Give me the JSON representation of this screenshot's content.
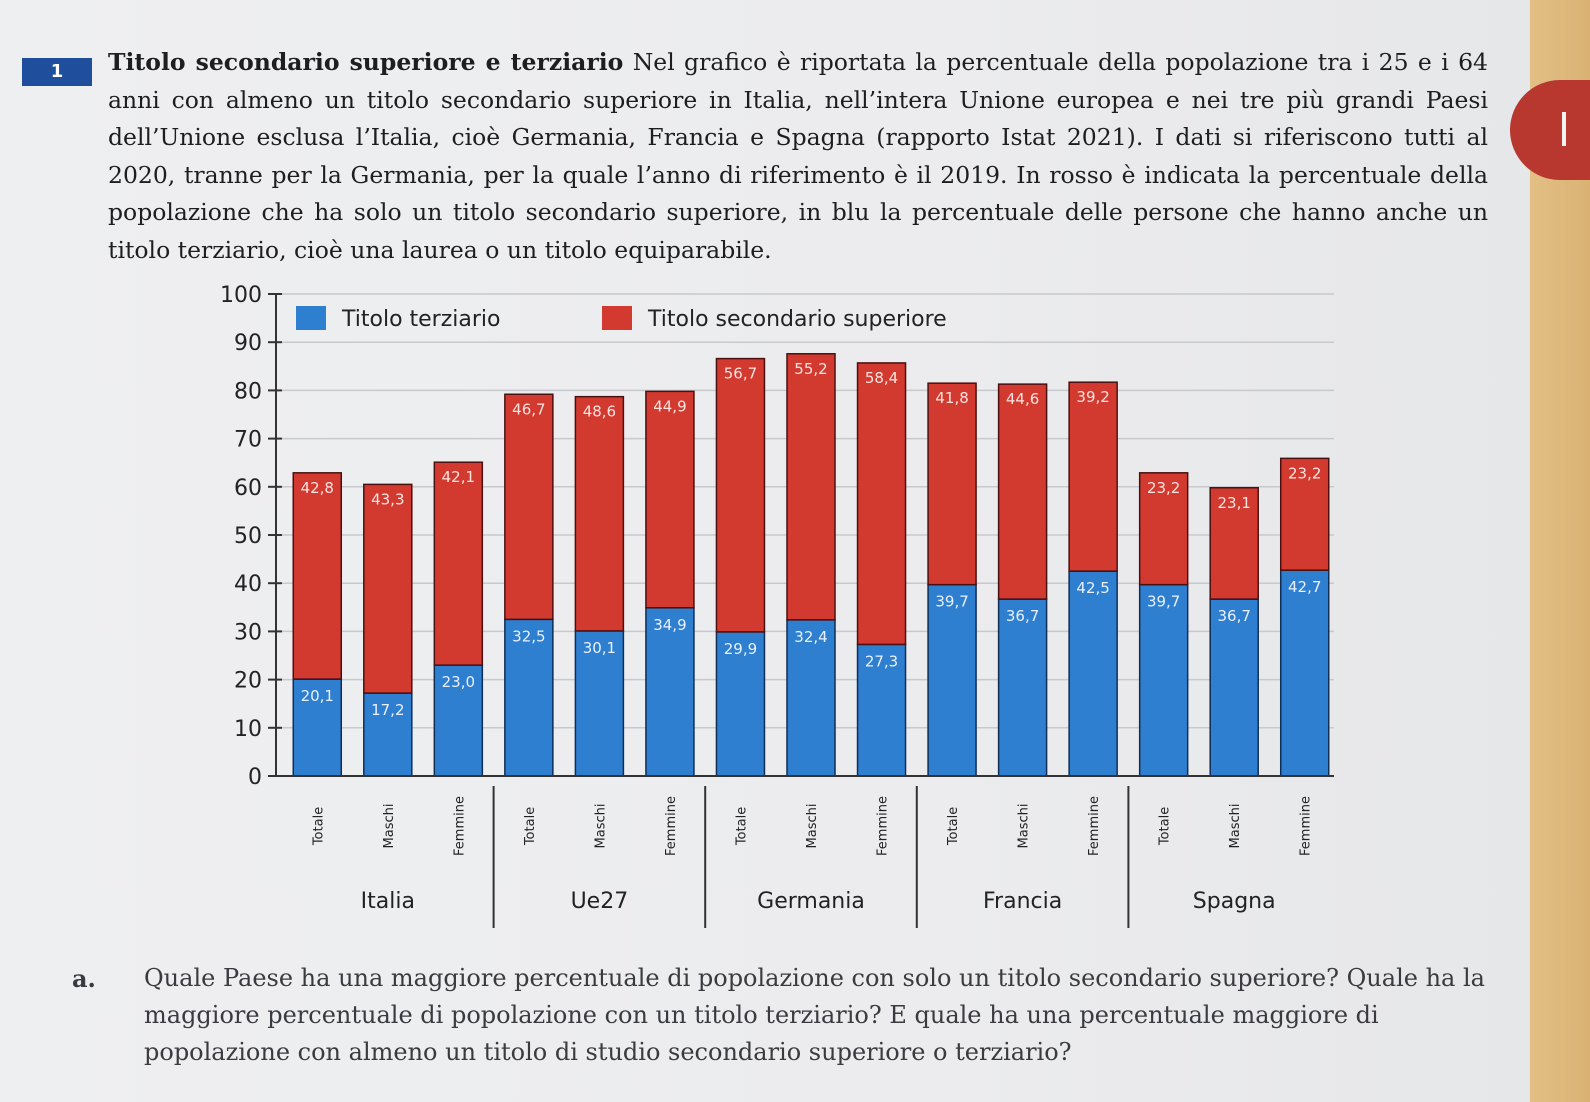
{
  "exercise": {
    "number": "1",
    "lead": "Titolo secondario superiore e terziario",
    "text": "Nel grafico è riportata la percentuale della popolazione tra i 25 e i 64 anni con almeno un titolo secondario superiore in Italia, nell’intera Unione europea e nei tre più grandi Paesi dell’Unione esclusa l’Italia, cioè Germania, Francia e Spagna (rapporto Istat 2021). I dati si riferiscono tutti al 2020, tranne per la Germania, per la quale l’anno di riferimento è il 2019. In rosso è indicata la percentuale della popolazione che ha solo un titolo secondario superiore, in blu la percentuale delle persone che hanno anche un titolo terziario, cioè una laurea o un titolo equiparabile."
  },
  "question": {
    "label": "a.",
    "text": "Quale Paese ha una maggiore percentuale di popolazione con solo un titolo secondario superiore? Quale ha la maggiore percentuale di popolazione con un titolo terziario? E quale ha una percentuale maggiore di popolazione con almeno un titolo di studio secondario superiore o terziario?"
  },
  "colors": {
    "tertiary": "#2f7fd0",
    "secondary": "#d23a30"
  },
  "chart_data": {
    "type": "bar",
    "stacked": true,
    "title": "",
    "xlabel": "",
    "ylabel": "",
    "ylim": [
      0,
      100
    ],
    "yticks": [
      0,
      10,
      20,
      30,
      40,
      50,
      60,
      70,
      80,
      90,
      100
    ],
    "grid": true,
    "legend_position": "top-left",
    "groups": [
      "Italia",
      "Ue27",
      "Germania",
      "Francia",
      "Spagna"
    ],
    "categories": [
      "Totale",
      "Maschi",
      "Femmine",
      "Totale",
      "Maschi",
      "Femmine",
      "Totale",
      "Maschi",
      "Femmine",
      "Totale",
      "Maschi",
      "Femmine",
      "Totale",
      "Maschi",
      "Femmine"
    ],
    "group_index": [
      0,
      0,
      0,
      1,
      1,
      1,
      2,
      2,
      2,
      3,
      3,
      3,
      4,
      4,
      4
    ],
    "series": [
      {
        "name": "Titolo terziario",
        "values": [
          20.1,
          17.2,
          23.0,
          32.5,
          30.1,
          34.9,
          29.9,
          32.4,
          27.3,
          39.7,
          36.7,
          42.5,
          39.7,
          36.7,
          42.7
        ],
        "labels": [
          "20,1",
          "17,2",
          "23,0",
          "32,5",
          "30,1",
          "34,9",
          "29,9",
          "32,4",
          "27,3",
          "39,7",
          "36,7",
          "42,5",
          "39,7",
          "36,7",
          "42,7"
        ]
      },
      {
        "name": "Titolo secondario superiore",
        "values": [
          42.8,
          43.3,
          42.1,
          46.7,
          48.6,
          44.9,
          56.7,
          55.2,
          58.4,
          41.8,
          44.6,
          39.2,
          23.2,
          23.1,
          23.2
        ],
        "labels": [
          "42,8",
          "43,3",
          "42,1",
          "46,7",
          "48,6",
          "44,9",
          "56,7",
          "55,2",
          "58,4",
          "41,8",
          "44,6",
          "39,2",
          "23,2",
          "23,1",
          "23,2"
        ]
      }
    ]
  }
}
